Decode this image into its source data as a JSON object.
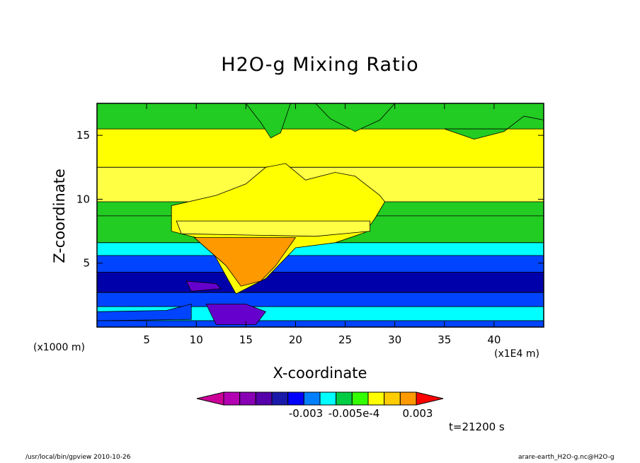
{
  "chart_data": {
    "type": "heatmap",
    "title": "H2O-g Mixing Ratio",
    "xlabel": "X-coordinate",
    "ylabel": "Z-coordinate",
    "x_unit_left": "(x1000 m)",
    "x_unit_right": "(x1E4 m)",
    "x_ticks": [
      "5",
      "10",
      "15",
      "20",
      "25",
      "30",
      "35",
      "40"
    ],
    "y_ticks": [
      "5",
      "10",
      "15"
    ],
    "xlim": [
      0,
      45
    ],
    "ylim": [
      0,
      17.5
    ],
    "time_label": "t=21200 s",
    "colorbar": {
      "colors": [
        "#cc0099",
        "#b300b3",
        "#8800b3",
        "#5500aa",
        "#1a1aaa",
        "#0000ff",
        "#0080ff",
        "#00ffff",
        "#00cc44",
        "#33ff00",
        "#ffff00",
        "#ffcc00",
        "#ff9900",
        "#ff0000"
      ],
      "tick_labels": [
        "-0.003",
        "-0.005e-4",
        "0.003"
      ]
    },
    "colors": {
      "green": "#22cc22",
      "yellow": "#ffff00",
      "light_yellow": "#ffff44",
      "orange": "#ff9900",
      "cyan": "#00ffff",
      "blue": "#0044ff",
      "dark_blue": "#0000aa",
      "purple": "#6600cc"
    }
  },
  "footer": {
    "left": "/usr/local/bin/gpview  2010-10-26",
    "right": "arare-earth_H2O-g.nc@H2O-g"
  }
}
